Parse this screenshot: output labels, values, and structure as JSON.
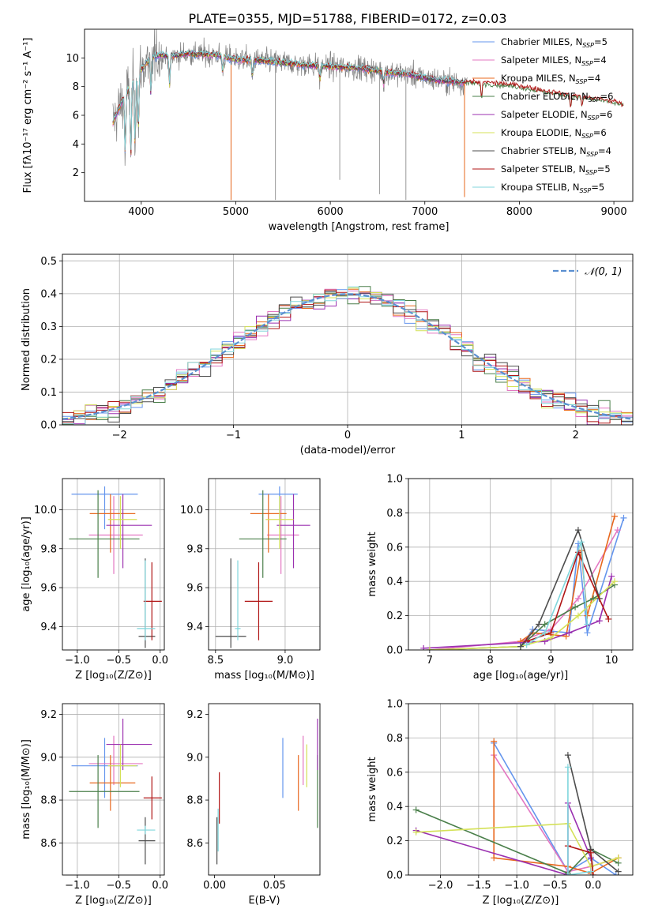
{
  "title": "PLATE=0355, MJD=51788, FIBERID=0172, z=0.03",
  "colors": [
    "#6495ed",
    "#e377c2",
    "#e8681e",
    "#4a7f4a",
    "#9b30b0",
    "#d4e157",
    "#4d4d4d",
    "#b01515",
    "#80d6dc"
  ],
  "chart_data": [
    {
      "id": "spectrum",
      "type": "line",
      "xlabel": "wavelength [Angstrom, rest frame]",
      "ylabel": "Flux [fλ10⁻¹⁷ erg cm⁻² s⁻¹ A⁻¹]",
      "xlim": [
        3400,
        9200
      ],
      "ylim": [
        0,
        12
      ],
      "xticks": [
        4000,
        5000,
        6000,
        7000,
        8000,
        9000
      ],
      "yticks": [
        2,
        4,
        6,
        8,
        10
      ],
      "grid": false,
      "legend": "top-right",
      "continuum": {
        "x": [
          3700,
          3800,
          3900,
          4000,
          4100,
          4200,
          4300,
          4500,
          4800,
          5000,
          5300,
          5600,
          6000,
          6300,
          6600,
          6800,
          7000,
          7200,
          7400,
          7700,
          8000,
          8300,
          8600,
          8800,
          9000,
          9100
        ],
        "y": [
          5.5,
          7.0,
          8.2,
          9.2,
          10.0,
          10.2,
          10.1,
          10.3,
          10.2,
          9.9,
          9.8,
          9.6,
          9.4,
          9.3,
          9.0,
          8.9,
          8.6,
          8.4,
          8.3,
          8.2,
          8.0,
          7.6,
          7.3,
          7.1,
          6.9,
          6.7
        ]
      },
      "absorption_features": [
        {
          "x": 3830,
          "depth": 4.0
        },
        {
          "x": 3890,
          "depth": 5.0
        },
        {
          "x": 3934,
          "depth": 4.5
        },
        {
          "x": 3969,
          "depth": 4.0
        },
        {
          "x": 4102,
          "depth": 2.5
        },
        {
          "x": 4300,
          "depth": 2.0
        },
        {
          "x": 4861,
          "depth": 1.0
        },
        {
          "x": 5175,
          "depth": 1.2
        },
        {
          "x": 5890,
          "depth": 1.0
        },
        {
          "x": 6563,
          "depth": 0.8
        },
        {
          "x": 7600,
          "depth": 1.2
        },
        {
          "x": 8542,
          "depth": 0.8
        },
        {
          "x": 8662,
          "depth": 0.7
        }
      ],
      "spikes": [
        {
          "x": 4950,
          "y": 0.1
        },
        {
          "x": 5420,
          "y": 0.1
        },
        {
          "x": 6100,
          "y": 1.5
        },
        {
          "x": 6520,
          "y": 0.5
        },
        {
          "x": 6800,
          "y": 0.1
        },
        {
          "x": 7420,
          "y": 0.3
        }
      ],
      "series": [
        {
          "name": "Chabrier MILES, N",
          "sub": "SSP",
          "suffix": "=5"
        },
        {
          "name": "Salpeter MILES, N",
          "sub": "SSP",
          "suffix": "=4"
        },
        {
          "name": "Kroupa MILES, N",
          "sub": "SSP",
          "suffix": "=4"
        },
        {
          "name": "Chabrier ELODIE, N",
          "sub": "SSP",
          "suffix": "=6"
        },
        {
          "name": "Salpeter ELODIE, N",
          "sub": "SSP",
          "suffix": "=6"
        },
        {
          "name": "Kroupa ELODIE, N",
          "sub": "SSP",
          "suffix": "=6"
        },
        {
          "name": "Chabrier STELIB, N",
          "sub": "SSP",
          "suffix": "=4"
        },
        {
          "name": "Salpeter STELIB, N",
          "sub": "SSP",
          "suffix": "=5"
        },
        {
          "name": "Kroupa STELIB, N",
          "sub": "SSP",
          "suffix": "=5"
        }
      ]
    },
    {
      "id": "residuals",
      "type": "line",
      "xlabel": "(data-model)/error",
      "ylabel": "Normed distribution",
      "xlim": [
        -2.5,
        2.5
      ],
      "ylim": [
        0,
        0.52
      ],
      "xticks": [
        -2,
        -1,
        0,
        1,
        2
      ],
      "yticks": [
        0.0,
        0.1,
        0.2,
        0.3,
        0.4,
        0.5
      ],
      "grid": true,
      "legend": "top-right",
      "gaussian_label": "𝒩(0, 1)",
      "bin_width": 0.1
    },
    {
      "id": "age-vs-Z",
      "type": "scatter",
      "xlabel": "Z [log₁₀(Z/Z⊙)]",
      "ylabel": "age  [log₁₀(age/yr)]",
      "xlim": [
        -1.18,
        0.05
      ],
      "ylim": [
        9.28,
        10.16
      ],
      "xticks": [
        -1.0,
        -0.5,
        0.0
      ],
      "yticks": [
        9.4,
        9.6,
        9.8,
        10.0
      ],
      "grid": true,
      "points": [
        {
          "x": -0.67,
          "y": 10.08,
          "xerr": [
            0.4,
            0.4
          ],
          "yerr": [
            0.18,
            0.04
          ]
        },
        {
          "x": -0.56,
          "y": 9.87,
          "xerr": [
            0.3,
            0.35
          ],
          "yerr": [
            0.2,
            0.2
          ]
        },
        {
          "x": -0.6,
          "y": 9.98,
          "xerr": [
            0.25,
            0.3
          ],
          "yerr": [
            0.2,
            0.1
          ]
        },
        {
          "x": -0.75,
          "y": 9.85,
          "xerr": [
            0.35,
            0.5
          ],
          "yerr": [
            0.2,
            0.25
          ]
        },
        {
          "x": -0.45,
          "y": 9.92,
          "xerr": [
            0.2,
            0.35
          ],
          "yerr": [
            0.22,
            0.16
          ]
        },
        {
          "x": -0.48,
          "y": 9.95,
          "xerr": [
            0.15,
            0.2
          ],
          "yerr": [
            0.15,
            0.12
          ]
        },
        {
          "x": -0.18,
          "y": 9.35,
          "xerr": [
            0.08,
            0.12
          ],
          "yerr": [
            0.06,
            0.4
          ]
        },
        {
          "x": -0.1,
          "y": 9.53,
          "xerr": [
            0.1,
            0.12
          ],
          "yerr": [
            0.2,
            0.2
          ]
        },
        {
          "x": -0.18,
          "y": 9.39,
          "xerr": [
            0.1,
            0.12
          ],
          "yerr": [
            0.06,
            0.35
          ]
        }
      ]
    },
    {
      "id": "age-vs-mass",
      "type": "scatter",
      "xlabel": "mass [log₁₀(M/M⊙)]",
      "ylabel": "",
      "xlim": [
        8.45,
        9.25
      ],
      "ylim": [
        9.28,
        10.16
      ],
      "xticks": [
        8.5,
        9.0
      ],
      "yticks": [
        9.4,
        9.6,
        9.8,
        10.0
      ],
      "grid": true,
      "points": [
        {
          "x": 8.96,
          "y": 10.08,
          "xerr": [
            0.15,
            0.13
          ],
          "yerr": [
            0.18,
            0.04
          ]
        },
        {
          "x": 8.97,
          "y": 9.87,
          "xerr": [
            0.1,
            0.13
          ],
          "yerr": [
            0.2,
            0.2
          ]
        },
        {
          "x": 8.88,
          "y": 9.98,
          "xerr": [
            0.13,
            0.13
          ],
          "yerr": [
            0.2,
            0.1
          ]
        },
        {
          "x": 8.84,
          "y": 9.85,
          "xerr": [
            0.17,
            0.17
          ],
          "yerr": [
            0.2,
            0.25
          ]
        },
        {
          "x": 9.06,
          "y": 9.92,
          "xerr": [
            0.12,
            0.12
          ],
          "yerr": [
            0.22,
            0.16
          ]
        },
        {
          "x": 8.96,
          "y": 9.95,
          "xerr": [
            0.1,
            0.1
          ],
          "yerr": [
            0.15,
            0.12
          ]
        },
        {
          "x": 8.61,
          "y": 9.35,
          "xerr": [
            0.11,
            0.11
          ],
          "yerr": [
            0.06,
            0.4
          ]
        },
        {
          "x": 8.81,
          "y": 9.53,
          "xerr": [
            0.1,
            0.1
          ],
          "yerr": [
            0.2,
            0.2
          ]
        },
        {
          "x": 8.66,
          "y": 9.39,
          "xerr": [
            0.02,
            0.02
          ],
          "yerr": [
            0.06,
            0.35
          ]
        }
      ]
    },
    {
      "id": "weight-vs-age",
      "type": "line",
      "xlabel": "age  [log₁₀(age/yr)]",
      "ylabel": "mass weight",
      "xlim": [
        6.65,
        10.35
      ],
      "ylim": [
        0,
        1
      ],
      "xticks": [
        7,
        8,
        9,
        10
      ],
      "yticks": [
        0.0,
        0.2,
        0.4,
        0.6,
        0.8,
        1.0
      ],
      "grid": true,
      "series": [
        {
          "x": [
            8.5,
            8.7,
            9.3,
            9.45,
            9.6,
            10.2
          ],
          "y": [
            0.02,
            0.12,
            0.1,
            0.62,
            0.1,
            0.77
          ]
        },
        {
          "x": [
            7.0,
            8.5,
            9.0,
            9.45,
            10.1
          ],
          "y": [
            0.0,
            0.05,
            0.12,
            0.3,
            0.7
          ]
        },
        {
          "x": [
            8.5,
            8.7,
            9.25,
            9.5,
            9.6,
            10.05
          ],
          "y": [
            0.05,
            0.1,
            0.08,
            0.58,
            0.2,
            0.78
          ]
        },
        {
          "x": [
            7.0,
            8.5,
            8.9,
            9.4,
            9.7,
            10.05
          ],
          "y": [
            0.0,
            0.02,
            0.15,
            0.25,
            0.3,
            0.38
          ]
        },
        {
          "x": [
            6.9,
            8.9,
            9.3,
            9.8,
            10.0
          ],
          "y": [
            0.01,
            0.05,
            0.1,
            0.17,
            0.43
          ]
        },
        {
          "x": [
            7.0,
            8.5,
            9.0,
            9.45,
            10.05
          ],
          "y": [
            0.0,
            0.02,
            0.07,
            0.2,
            0.4
          ]
        },
        {
          "x": [
            8.5,
            8.8,
            9.45,
            9.8
          ],
          "y": [
            0.02,
            0.15,
            0.7,
            0.3
          ]
        },
        {
          "x": [
            8.6,
            9.0,
            9.45,
            9.95
          ],
          "y": [
            0.05,
            0.1,
            0.57,
            0.18
          ]
        },
        {
          "x": [
            8.6,
            8.9,
            9.5,
            9.6
          ],
          "y": [
            0.03,
            0.1,
            0.63,
            0.15
          ]
        }
      ]
    },
    {
      "id": "mass-vs-Z",
      "type": "scatter",
      "xlabel": "Z [log₁₀(Z/Z⊙)]",
      "ylabel": "mass [log₁₀(M/M⊙)]",
      "xlim": [
        -1.18,
        0.05
      ],
      "ylim": [
        8.45,
        9.25
      ],
      "xticks": [
        -1.0,
        -0.5,
        0.0
      ],
      "yticks": [
        8.6,
        8.8,
        9.0,
        9.2
      ],
      "grid": true,
      "points": [
        {
          "x": -0.67,
          "y": 8.96,
          "xerr": [
            0.4,
            0.4
          ],
          "yerr": [
            0.15,
            0.13
          ]
        },
        {
          "x": -0.56,
          "y": 8.97,
          "xerr": [
            0.3,
            0.35
          ],
          "yerr": [
            0.1,
            0.13
          ]
        },
        {
          "x": -0.6,
          "y": 8.88,
          "xerr": [
            0.25,
            0.3
          ],
          "yerr": [
            0.13,
            0.13
          ]
        },
        {
          "x": -0.75,
          "y": 8.84,
          "xerr": [
            0.35,
            0.5
          ],
          "yerr": [
            0.17,
            0.17
          ]
        },
        {
          "x": -0.45,
          "y": 9.06,
          "xerr": [
            0.2,
            0.35
          ],
          "yerr": [
            0.12,
            0.12
          ]
        },
        {
          "x": -0.48,
          "y": 8.96,
          "xerr": [
            0.15,
            0.2
          ],
          "yerr": [
            0.1,
            0.1
          ]
        },
        {
          "x": -0.18,
          "y": 8.61,
          "xerr": [
            0.08,
            0.12
          ],
          "yerr": [
            0.11,
            0.11
          ]
        },
        {
          "x": -0.1,
          "y": 8.81,
          "xerr": [
            0.1,
            0.12
          ],
          "yerr": [
            0.1,
            0.1
          ]
        },
        {
          "x": -0.18,
          "y": 8.66,
          "xerr": [
            0.1,
            0.12
          ],
          "yerr": [
            0.02,
            0.02
          ]
        }
      ]
    },
    {
      "id": "mass-vs-ebv",
      "type": "scatter",
      "xlabel": "E(B-V)",
      "ylabel": "",
      "xlim": [
        -0.005,
        0.088
      ],
      "ylim": [
        8.45,
        9.25
      ],
      "xticks": [
        0.0,
        0.05
      ],
      "yticks": [
        8.6,
        8.8,
        9.0,
        9.2
      ],
      "grid": false,
      "points": [
        {
          "x": 0.057,
          "y": 8.96,
          "xerr": [
            0,
            0
          ],
          "yerr": [
            0.15,
            0.13
          ]
        },
        {
          "x": 0.074,
          "y": 8.97,
          "xerr": [
            0,
            0
          ],
          "yerr": [
            0.1,
            0.13
          ]
        },
        {
          "x": 0.07,
          "y": 8.88,
          "xerr": [
            0,
            0
          ],
          "yerr": [
            0.13,
            0.13
          ]
        },
        {
          "x": 0.086,
          "y": 8.84,
          "xerr": [
            0,
            0
          ],
          "yerr": [
            0.17,
            0.17
          ]
        },
        {
          "x": 0.086,
          "y": 9.06,
          "xerr": [
            0,
            0
          ],
          "yerr": [
            0.12,
            0.12
          ]
        },
        {
          "x": 0.077,
          "y": 8.96,
          "xerr": [
            0,
            0
          ],
          "yerr": [
            0.1,
            0.1
          ]
        },
        {
          "x": 0.002,
          "y": 8.61,
          "xerr": [
            0,
            0
          ],
          "yerr": [
            0.11,
            0.11
          ]
        },
        {
          "x": 0.004,
          "y": 8.81,
          "xerr": [
            0,
            0
          ],
          "yerr": [
            0.12,
            0.12
          ]
        },
        {
          "x": 0.003,
          "y": 8.66,
          "xerr": [
            0,
            0
          ],
          "yerr": [
            0.1,
            0.1
          ]
        }
      ]
    },
    {
      "id": "weight-vs-Z",
      "type": "line",
      "xlabel": "Z [log₁₀(Z/Z⊙)]",
      "ylabel": "mass weight",
      "xlim": [
        -2.42,
        0.52
      ],
      "ylim": [
        0,
        1
      ],
      "xticks": [
        -2.0,
        -1.5,
        -1.0,
        -0.5,
        0.0
      ],
      "yticks": [
        0.0,
        0.2,
        0.4,
        0.6,
        0.8,
        1.0
      ],
      "grid": true,
      "series": [
        {
          "x": [
            -1.3,
            -0.33,
            -0.03,
            0.3
          ],
          "y": [
            0.77,
            0.02,
            0.1,
            0.0
          ]
        },
        {
          "x": [
            -1.3,
            -0.33,
            -0.03,
            0.33
          ],
          "y": [
            0.7,
            0.02,
            0.05,
            0.1
          ]
        },
        {
          "x": [
            -1.3,
            -1.3,
            -0.33,
            -0.03,
            0.33
          ],
          "y": [
            0.78,
            0.1,
            0.05,
            0.01,
            0.1
          ]
        },
        {
          "x": [
            -2.32,
            -0.33,
            -0.03,
            0.33
          ],
          "y": [
            0.38,
            0.01,
            0.15,
            0.07
          ]
        },
        {
          "x": [
            -2.32,
            -0.33,
            -0.33,
            -0.03
          ],
          "y": [
            0.26,
            0.0,
            0.42,
            0.1
          ]
        },
        {
          "x": [
            -2.32,
            -0.33,
            -0.03,
            0.33
          ],
          "y": [
            0.25,
            0.3,
            0.05,
            0.1
          ]
        },
        {
          "x": [
            -0.33,
            -0.03,
            0.33
          ],
          "y": [
            0.7,
            0.15,
            0.02
          ]
        },
        {
          "x": [
            -0.33,
            -0.03,
            0.0
          ],
          "y": [
            0.17,
            0.13,
            0.0
          ]
        },
        {
          "x": [
            -0.33,
            -0.33,
            -0.03
          ],
          "y": [
            0.63,
            0.0,
            0.02
          ]
        }
      ]
    }
  ]
}
